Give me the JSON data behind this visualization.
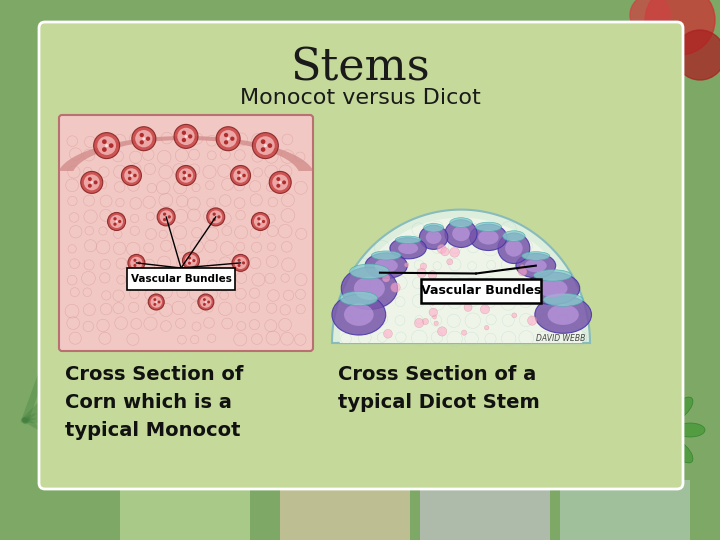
{
  "title": "Stems",
  "subtitle": "Monocot versus Dicot",
  "caption_left": "Cross Section of\nCorn which is a\ntypical Monocot",
  "caption_right": "Cross Section of a\ntypical Dicot Stem",
  "label_bundles": "Vascular Bundles",
  "bg_outer": "#7da866",
  "bg_card": "#c5d99a",
  "title_fontsize": 32,
  "subtitle_fontsize": 16,
  "caption_fontsize": 14
}
